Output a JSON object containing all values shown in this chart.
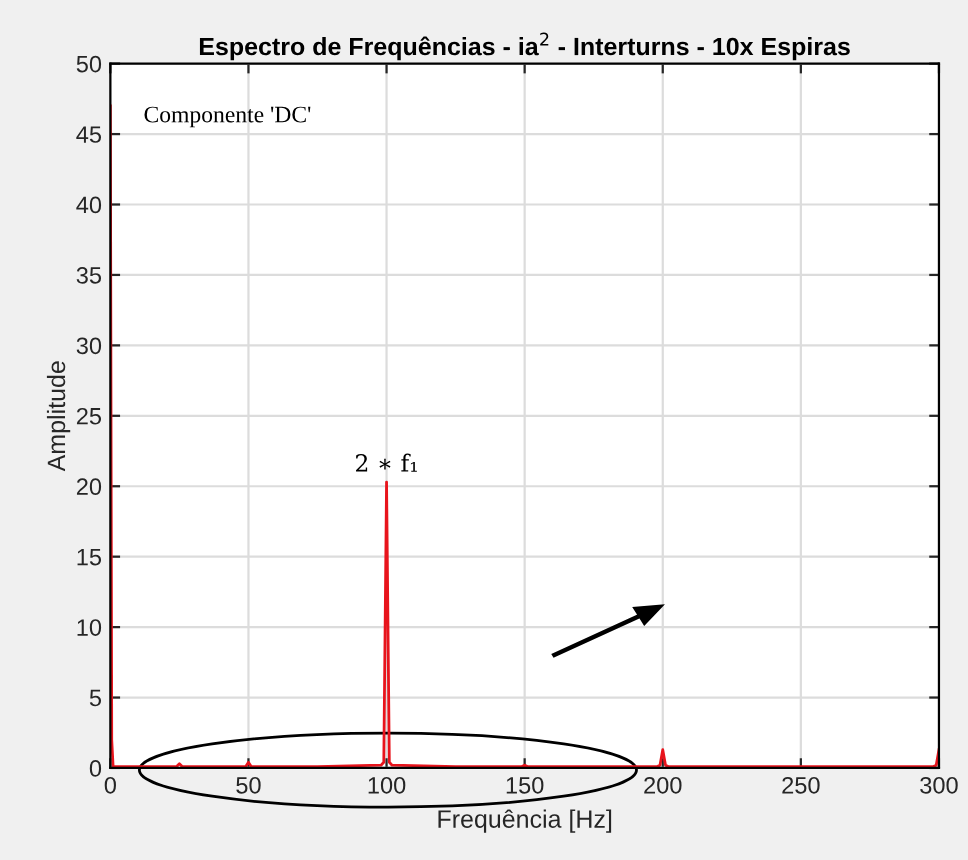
{
  "chart_data": {
    "type": "line",
    "title": "Espectro de Frequências - ia$^{2}$ - Interturns - 10x Espiras",
    "xlabel": "Frequência [Hz]",
    "ylabel": "Amplitude",
    "x": [
      0,
      0.5,
      1,
      10,
      24,
      25,
      26,
      49,
      50,
      51,
      75,
      98,
      99,
      100,
      101,
      102,
      125,
      149,
      150,
      151,
      175,
      198,
      199,
      200,
      201,
      202,
      250,
      298,
      299,
      300
    ],
    "series": [
      {
        "color": "#e8141c",
        "values": [
          47,
          2,
          0.1,
          0.1,
          0.1,
          0.3,
          0.1,
          0.1,
          0.4,
          0.1,
          0.1,
          0.2,
          0.4,
          20.3,
          0.4,
          0.2,
          0.1,
          0.1,
          0.2,
          0.1,
          0.1,
          0.1,
          0.2,
          1.3,
          0.2,
          0.1,
          0.1,
          0.1,
          0.2,
          1.3
        ]
      }
    ],
    "xlim": [
      0,
      300
    ],
    "xticks": [
      0,
      50,
      100,
      150,
      200,
      250,
      300
    ],
    "ylim": [
      0,
      50
    ],
    "yticks": [
      0,
      5,
      10,
      15,
      20,
      25,
      30,
      35,
      40,
      45,
      50
    ],
    "grid": true,
    "annotations": [
      "Componente 'DC'",
      {
        "text": "2 ∗ f₁",
        "x": 100,
        "y": 20.3
      }
    ]
  }
}
